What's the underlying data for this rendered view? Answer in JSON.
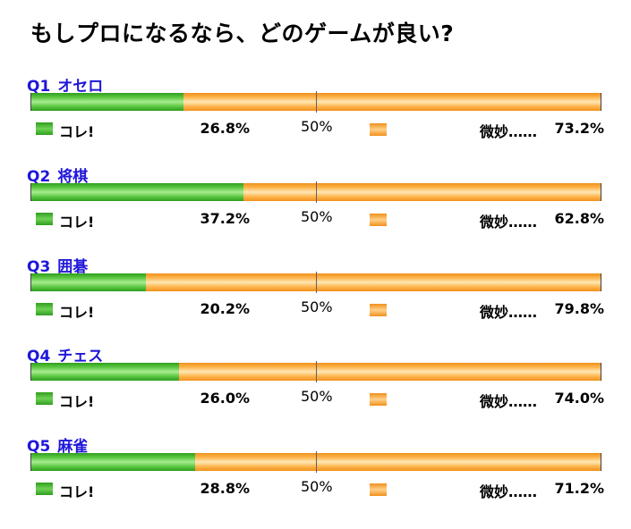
{
  "title": "もしプロになるなら、どのゲームが良い?",
  "legend": {
    "yes_label": "コレ!",
    "no_label": "微妙……",
    "midpoint_label": "50%"
  },
  "colors": {
    "yes": "#5cc843",
    "no": "#ffb64f",
    "question_label": "#1f17d9"
  },
  "questions": [
    {
      "number": "Q1",
      "label": "オセロ",
      "yes_pct": "26.8%",
      "no_pct": "73.2%"
    },
    {
      "number": "Q2",
      "label": "将棋",
      "yes_pct": "37.2%",
      "no_pct": "62.8%"
    },
    {
      "number": "Q3",
      "label": "囲碁",
      "yes_pct": "20.2%",
      "no_pct": "79.8%"
    },
    {
      "number": "Q4",
      "label": "チェス",
      "yes_pct": "26.0%",
      "no_pct": "74.0%"
    },
    {
      "number": "Q5",
      "label": "麻雀",
      "yes_pct": "28.8%",
      "no_pct": "71.2%"
    }
  ],
  "chart_data": {
    "type": "bar",
    "stacked": true,
    "orientation": "horizontal",
    "title": "もしプロになるなら、どのゲームが良い?",
    "categories": [
      "Q1 オセロ",
      "Q2 将棋",
      "Q3 囲碁",
      "Q4 チェス",
      "Q5 麻雀"
    ],
    "series": [
      {
        "name": "コレ!",
        "values": [
          26.8,
          37.2,
          20.2,
          26.0,
          28.8
        ]
      },
      {
        "name": "微妙……",
        "values": [
          73.2,
          62.8,
          79.8,
          74.0,
          71.2
        ]
      }
    ],
    "xlim": [
      0,
      100
    ],
    "reference_line": 50
  }
}
